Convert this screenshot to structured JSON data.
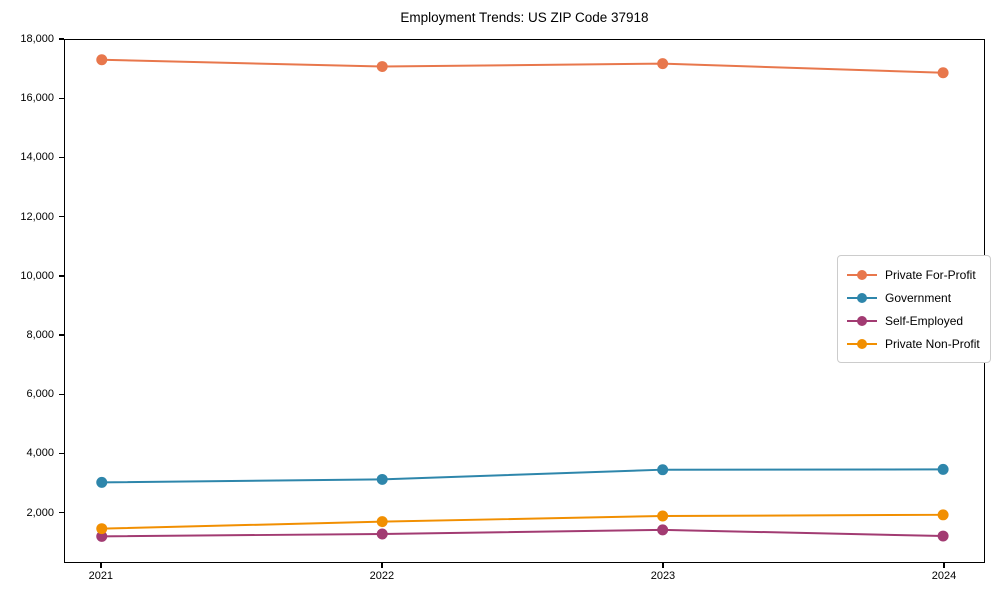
{
  "chart_data": {
    "type": "line",
    "title": "Employment Trends: US ZIP Code 37918",
    "categories": [
      "2021",
      "2022",
      "2023",
      "2024"
    ],
    "series": [
      {
        "name": "Private For-Profit",
        "color": "#E8774C",
        "values": [
          17330,
          17100,
          17200,
          16890
        ]
      },
      {
        "name": "Government",
        "color": "#2E86AB",
        "values": [
          3000,
          3100,
          3430,
          3440
        ]
      },
      {
        "name": "Self-Employed",
        "color": "#A23B72",
        "values": [
          1170,
          1250,
          1390,
          1180
        ]
      },
      {
        "name": "Private Non-Profit",
        "color": "#F18F01",
        "values": [
          1430,
          1670,
          1860,
          1900
        ]
      }
    ],
    "ylim": [
      300,
      18000
    ],
    "yticks": [
      2000,
      4000,
      6000,
      8000,
      10000,
      12000,
      14000,
      16000,
      18000
    ],
    "xlabel": "",
    "ylabel": "",
    "grid": false,
    "legend_position": "center right",
    "marker": "circle",
    "background_color": "#ffffff",
    "axis_color": "#000000"
  }
}
